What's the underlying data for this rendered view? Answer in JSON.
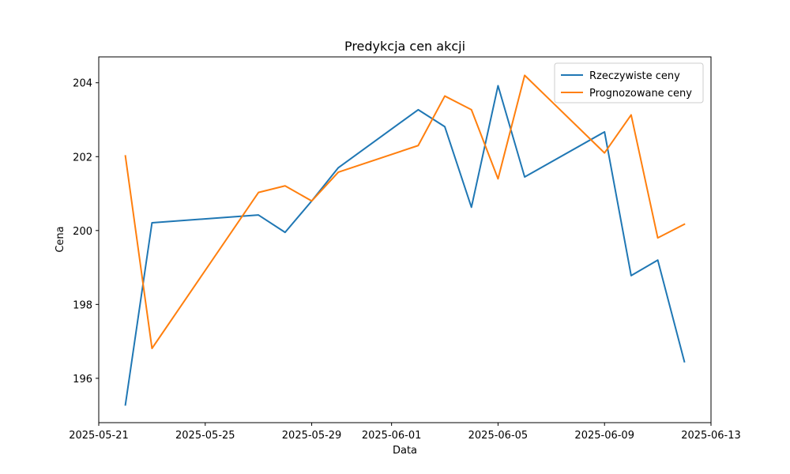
{
  "chart_data": {
    "type": "line",
    "title": "Predykcja cen akcji",
    "xlabel": "Data",
    "ylabel": "Cena",
    "xlim": [
      "2025-05-21",
      "2025-06-13"
    ],
    "ylim": [
      194.8,
      204.7
    ],
    "x_ticks": [
      "2025-05-21",
      "2025-05-25",
      "2025-05-29",
      "2025-06-01",
      "2025-06-05",
      "2025-06-09",
      "2025-06-13"
    ],
    "y_ticks": [
      196,
      198,
      200,
      202,
      204
    ],
    "legend_position": "top-right",
    "grid": false,
    "x": [
      "2025-05-22",
      "2025-05-23",
      "2025-05-27",
      "2025-05-28",
      "2025-05-29",
      "2025-05-30",
      "2025-06-02",
      "2025-06-03",
      "2025-06-04",
      "2025-06-05",
      "2025-06-06",
      "2025-06-09",
      "2025-06-10",
      "2025-06-11",
      "2025-06-12"
    ],
    "series": [
      {
        "name": "Rzeczywiste ceny",
        "color": "#1f77b4",
        "values": [
          195.28,
          200.21,
          200.42,
          199.95,
          200.8,
          201.7,
          203.27,
          202.81,
          200.63,
          203.92,
          201.45,
          202.67,
          198.78,
          199.2,
          196.45
        ]
      },
      {
        "name": "Prognozowane ceny",
        "color": "#ff7f0e",
        "values": [
          202.02,
          196.81,
          201.03,
          201.21,
          200.8,
          201.58,
          202.3,
          203.64,
          203.27,
          201.4,
          204.2,
          202.1,
          203.13,
          199.8,
          200.17
        ]
      }
    ]
  }
}
